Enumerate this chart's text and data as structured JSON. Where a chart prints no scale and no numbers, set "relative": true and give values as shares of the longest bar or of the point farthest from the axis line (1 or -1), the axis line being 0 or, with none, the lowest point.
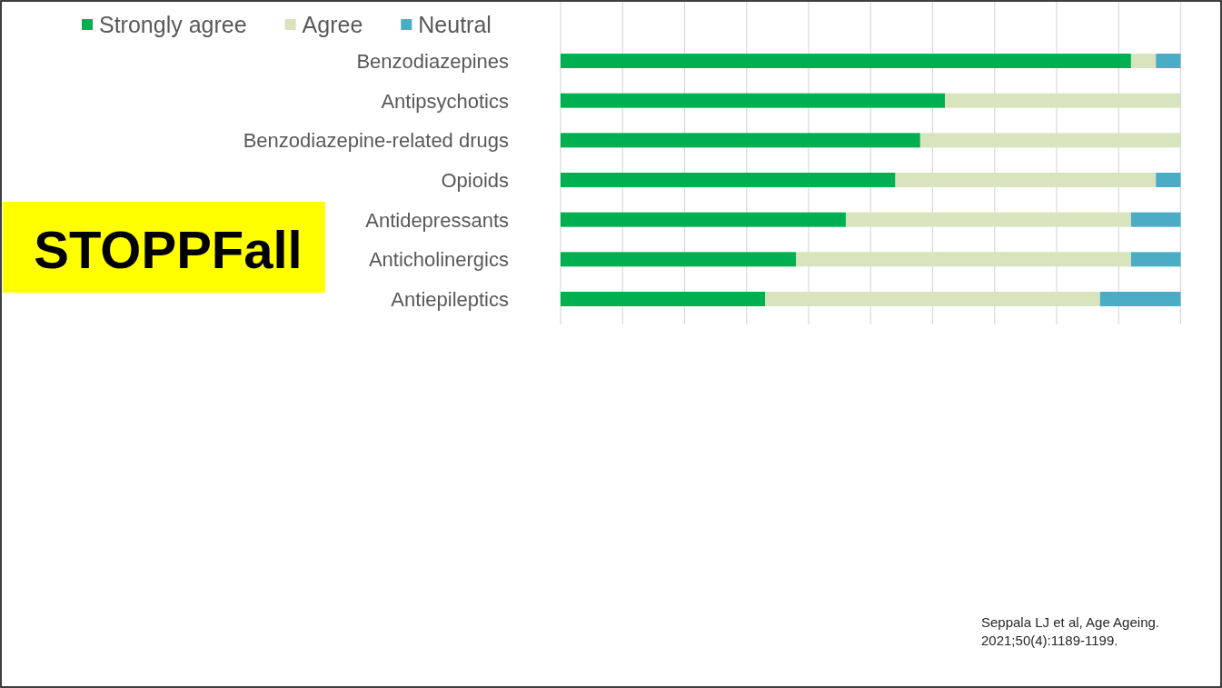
{
  "chart_data": {
    "type": "bar",
    "orientation": "horizontal",
    "stacked": true,
    "relative": true,
    "title": "STOPPFall",
    "categories": [
      "Benzodiazepines",
      "Antipsychotics",
      "Benzodiazepine-related drugs",
      "Opioids",
      "Antidepressants",
      "Anticholinergics",
      "Antiepileptics"
    ],
    "series": [
      {
        "name": "Strongly agree",
        "color": "#00b050",
        "values": [
          0.92,
          0.62,
          0.58,
          0.54,
          0.46,
          0.38,
          0.33
        ]
      },
      {
        "name": "Agree",
        "color": "#d7e4bd",
        "values": [
          0.04,
          0.38,
          0.42,
          0.42,
          0.46,
          0.54,
          0.54
        ]
      },
      {
        "name": "Neutral",
        "color": "#4bacc6",
        "values": [
          0.04,
          null,
          null,
          0.04,
          0.08,
          0.08,
          0.13
        ]
      }
    ],
    "tick_labels": "y",
    "grid": "x",
    "legend": "top left",
    "annotations": [
      "Seppala LJ et al, Age Ageing.\n2021;50(4):1189-1199."
    ]
  }
}
